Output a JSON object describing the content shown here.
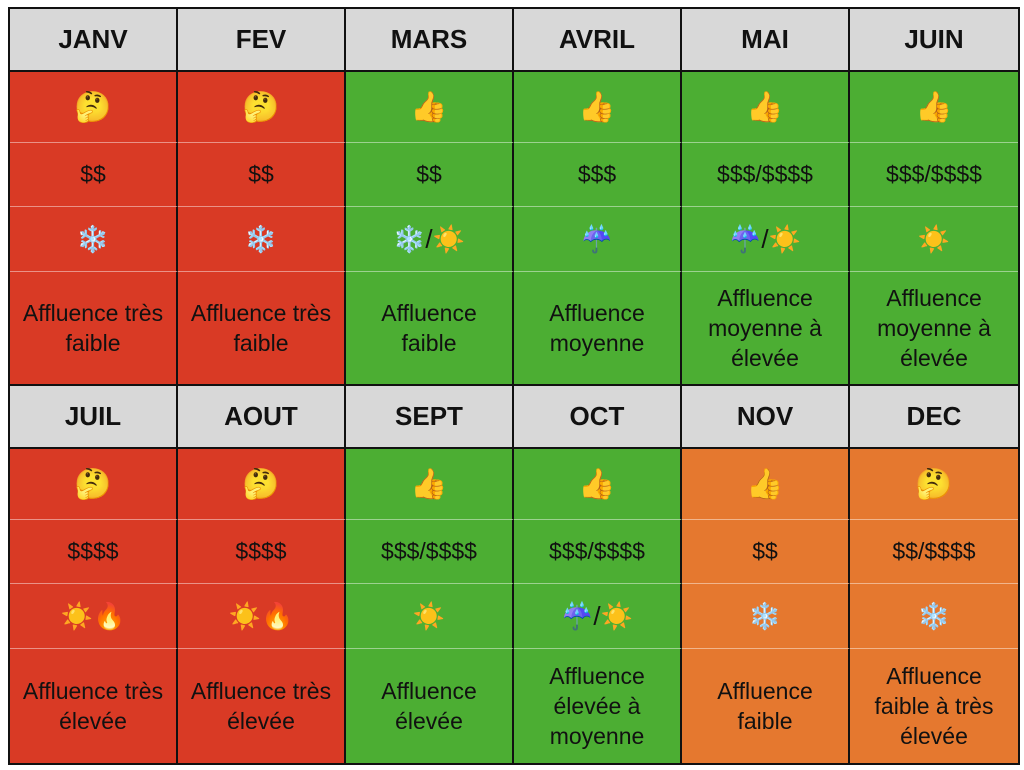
{
  "colors": {
    "red": "#d93a25",
    "green": "#4cae33",
    "orange": "#e5782f",
    "header": "#d8d8d8"
  },
  "months": [
    {
      "name": "JANV",
      "color": "red",
      "verdict": "🤔",
      "verdict_icon": "thinking-face-icon",
      "price": "$$",
      "weather": "❄️",
      "weather_icon": "snowflake-icon",
      "crowd": "Affluence très faible"
    },
    {
      "name": "FEV",
      "color": "red",
      "verdict": "🤔",
      "verdict_icon": "thinking-face-icon",
      "price": "$$",
      "weather": "❄️",
      "weather_icon": "snowflake-icon",
      "crowd": "Affluence très faible"
    },
    {
      "name": "MARS",
      "color": "green",
      "verdict": "👍",
      "verdict_icon": "thumbs-up-icon",
      "price": "$$",
      "weather": "❄️/☀️",
      "weather_icon": "snowflake-sun-icon",
      "crowd": "Affluence faible"
    },
    {
      "name": "AVRIL",
      "color": "green",
      "verdict": "👍",
      "verdict_icon": "thumbs-up-icon",
      "price": "$$$",
      "weather": "☔",
      "weather_icon": "umbrella-rain-icon",
      "crowd": "Affluence moyenne"
    },
    {
      "name": "MAI",
      "color": "green",
      "verdict": "👍",
      "verdict_icon": "thumbs-up-icon",
      "price": "$$$/$$$$",
      "weather": "☔/☀️",
      "weather_icon": "umbrella-rain-sun-icon",
      "crowd": "Affluence moyenne à élevée"
    },
    {
      "name": "JUIN",
      "color": "green",
      "verdict": "👍",
      "verdict_icon": "thumbs-up-icon",
      "price": "$$$/$$$$",
      "weather": "☀️",
      "weather_icon": "sun-icon",
      "crowd": "Affluence moyenne à élevée"
    },
    {
      "name": "JUIL",
      "color": "red",
      "verdict": "🤔",
      "verdict_icon": "thinking-face-icon",
      "price": "$$$$",
      "weather": "☀️🔥",
      "weather_icon": "sun-fire-icon",
      "crowd": "Affluence très élevée"
    },
    {
      "name": "AOUT",
      "color": "red",
      "verdict": "🤔",
      "verdict_icon": "thinking-face-icon",
      "price": "$$$$",
      "weather": "☀️🔥",
      "weather_icon": "sun-fire-icon",
      "crowd": "Affluence très élevée"
    },
    {
      "name": "SEPT",
      "color": "green",
      "verdict": "👍",
      "verdict_icon": "thumbs-up-icon",
      "price": "$$$/$$$$",
      "weather": "☀️",
      "weather_icon": "sun-icon",
      "crowd": "Affluence élevée"
    },
    {
      "name": "OCT",
      "color": "green",
      "verdict": "👍",
      "verdict_icon": "thumbs-up-icon",
      "price": "$$$/$$$$",
      "weather": "☔/☀️",
      "weather_icon": "umbrella-rain-sun-icon",
      "crowd": "Affluence élevée à moyenne"
    },
    {
      "name": "NOV",
      "color": "orange",
      "verdict": "👍",
      "verdict_icon": "thumbs-up-icon",
      "price": "$$",
      "weather": "❄️",
      "weather_icon": "snowflake-icon",
      "crowd": "Affluence faible"
    },
    {
      "name": "DEC",
      "color": "orange",
      "verdict": "🤔",
      "verdict_icon": "thinking-face-icon",
      "price": "$$/$$$$",
      "weather": "❄️",
      "weather_icon": "snowflake-icon",
      "crowd": "Affluence faible à très élevée"
    }
  ]
}
